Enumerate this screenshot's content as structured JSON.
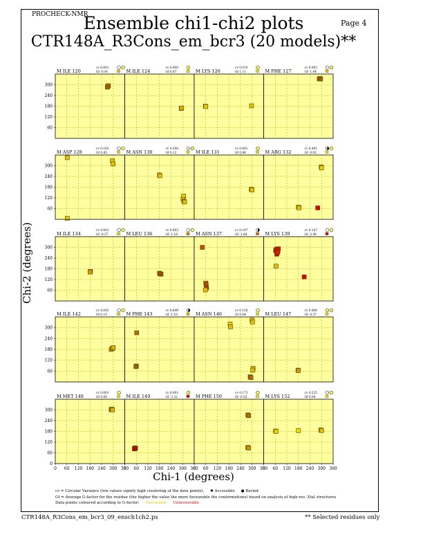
{
  "header": {
    "program": "PROCHECK-NMR",
    "page_label": "Page  4",
    "title": "Ensemble chi1-chi2 plots",
    "subtitle": "CTR148A_R3Cons_em_bcr3 (20 models)**"
  },
  "axes": {
    "xlabel": "Chi-1 (degrees)",
    "ylabel": "Chi-2 (degrees)",
    "xticks": [
      "0",
      "60",
      "120",
      "180",
      "240",
      "300",
      "360"
    ],
    "yticks": [
      "0",
      "60",
      "120",
      "180",
      "240",
      "300"
    ]
  },
  "legend": {
    "line1": "cv = Circular Variance (low values signify high clustering of the data points).",
    "accessible": "Accessible",
    "buried": "Buried",
    "line2": "Gf = Average G-factor for the residue (the higher the value the more favourable the conformations) based on analysis of high-res. Xtal structures",
    "line3": "Data points coloured according to G-factor:",
    "favourable": "Favourable",
    "unfavourable": "Unfavourable"
  },
  "footer": {
    "filename": "CTR148A_R3Cons_em_bcr3_09_ensch1ch2.ps",
    "note": "** Selected residues only"
  },
  "colors": {
    "panel_bg": "#ffffa0",
    "grid": "#b0a000",
    "favourable": "#e6c800",
    "unfavourable": "#e00000"
  },
  "chart_data": {
    "type": "scatter",
    "xlim": [
      0,
      360
    ],
    "ylim": [
      0,
      360
    ],
    "grid": true,
    "panels": [
      {
        "residue": "M ILE 120",
        "cv": "cv 0.001",
        "gf": "Gf -0.91",
        "acc": "accessible",
        "gfcolor": "#f0c000",
        "points": [
          [
            272,
            290,
            "#b07000"
          ],
          [
            275,
            295,
            "#c08000"
          ],
          [
            270,
            287,
            "#a06000"
          ]
        ]
      },
      {
        "residue": "M ILE 124",
        "cv": "cv 0.000",
        "gf": "Gf 0.87",
        "acc": "buried",
        "gfcolor": "#f0e000",
        "points": [
          [
            293,
            168,
            "#e0c000"
          ],
          [
            295,
            170,
            "#d8b000"
          ]
        ]
      },
      {
        "residue": "M LYS 126",
        "cv": "cv 0.010",
        "gf": "Gf 1.11",
        "acc": "buried",
        "gfcolor": "#f0e000",
        "points": [
          [
            58,
            180,
            "#e0c000"
          ],
          [
            60,
            178,
            "#e8d000"
          ],
          [
            297,
            182,
            "#e0c000"
          ]
        ]
      },
      {
        "residue": "M PHE 127",
        "cv": "cv 0.003",
        "gf": "Gf -1.04",
        "acc": "accessible",
        "gfcolor": "#f0c000",
        "points": [
          [
            288,
            333,
            "#c08000"
          ],
          [
            292,
            335,
            "#b07000"
          ],
          [
            295,
            332,
            "#a06000"
          ]
        ]
      },
      {
        "residue": "M ASP 128",
        "cv": "cv 0.163",
        "gf": "Gf 0.85",
        "acc": "accessible",
        "gfcolor": "#f0e000",
        "points": [
          [
            62,
            345,
            "#e0c000"
          ],
          [
            62,
            6,
            "#e8d000"
          ],
          [
            296,
            328,
            "#e0c000"
          ],
          [
            300,
            310,
            "#e0c000"
          ]
        ]
      },
      {
        "residue": "M ASN 130",
        "cv": "cv 0.308",
        "gf": "Gf 0.12",
        "acc": "accessible",
        "gfcolor": "#f0e000",
        "points": [
          [
            180,
            248,
            "#d8b000"
          ],
          [
            182,
            244,
            "#e0c000"
          ],
          [
            305,
            130,
            "#e8d000"
          ],
          [
            302,
            112,
            "#d8b000"
          ],
          [
            307,
            100,
            "#d0a800"
          ],
          [
            310,
            97,
            "#e0c000"
          ]
        ]
      },
      {
        "residue": "M ILE 131",
        "cv": "cv 0.001",
        "gf": "Gf 0.86",
        "acc": "buried",
        "gfcolor": "#f0e000",
        "points": [
          [
            296,
            168,
            "#d8b000"
          ],
          [
            300,
            165,
            "#e0c000"
          ]
        ]
      },
      {
        "residue": "M ARG 132",
        "cv": "cv 0.491",
        "gf": "Gf -0.02",
        "acc": "half",
        "gfcolor": "#f0e000",
        "points": [
          [
            298,
            293,
            "#e0c000"
          ],
          [
            300,
            288,
            "#e8d000"
          ],
          [
            180,
            68,
            "#d8b000"
          ],
          [
            184,
            65,
            "#e0c000"
          ],
          [
            280,
            64,
            "#e00000"
          ]
        ]
      },
      {
        "residue": "M ILE 134",
        "cv": "cv 0.001",
        "gf": "Gf -0.37",
        "acc": "accessible",
        "gfcolor": "#f0e000",
        "points": [
          [
            182,
            165,
            "#c89000"
          ],
          [
            180,
            162,
            "#d0a000"
          ]
        ]
      },
      {
        "residue": "M LEU 136",
        "cv": "cv 0.003",
        "gf": "Gf -1.19",
        "acc": "accessible",
        "gfcolor": "#e08000",
        "points": [
          [
            180,
            155,
            "#c07000"
          ],
          [
            188,
            150,
            "#b06000"
          ],
          [
            184,
            152,
            "#a05000"
          ]
        ]
      },
      {
        "residue": "M ASN 137",
        "cv": "cv 0.107",
        "gf": "Gf -1.64",
        "acc": "half",
        "gfcolor": "#e06000",
        "points": [
          [
            42,
            300,
            "#c05000"
          ],
          [
            60,
            100,
            "#c06000"
          ],
          [
            62,
            92,
            "#b05000"
          ],
          [
            64,
            74,
            "#a04000"
          ],
          [
            58,
            62,
            "#e0c000"
          ]
        ]
      },
      {
        "residue": "M LYS 139",
        "cv": "cv 0.147",
        "gf": "Gf -2.49",
        "acc": "accessible",
        "gfcolor": "#e00000",
        "points": [
          [
            62,
            282,
            "#d00000"
          ],
          [
            66,
            290,
            "#c00000"
          ],
          [
            70,
            285,
            "#e00000"
          ],
          [
            74,
            278,
            "#b00000"
          ],
          [
            76,
            292,
            "#d01000"
          ],
          [
            68,
            262,
            "#c00000"
          ],
          [
            72,
            272,
            "#e02000"
          ],
          [
            64,
            195,
            "#e0c000"
          ],
          [
            210,
            135,
            "#e00000"
          ]
        ]
      },
      {
        "residue": "M ILE 142",
        "cv": "cv 0.002",
        "gf": "Gf 0.15",
        "acc": "accessible",
        "gfcolor": "#f0e000",
        "points": [
          [
            290,
            180,
            "#d0a800"
          ],
          [
            296,
            186,
            "#c89800"
          ],
          [
            300,
            190,
            "#d8b000"
          ]
        ]
      },
      {
        "residue": "M PHE 143",
        "cv": "cv 0.649",
        "gf": "Gf -1.10",
        "acc": "half",
        "gfcolor": "#f0c000",
        "points": [
          [
            62,
            272,
            "#b07000"
          ],
          [
            60,
            88,
            "#b07000"
          ],
          [
            58,
            85,
            "#a06000"
          ]
        ]
      },
      {
        "residue": "M ASN 146",
        "cv": "cv 0.156",
        "gf": "Gf 0.04",
        "acc": "buried",
        "gfcolor": "#f0e000",
        "points": [
          [
            300,
            342,
            "#d8b000"
          ],
          [
            302,
            332,
            "#e0c000"
          ],
          [
            186,
            320,
            "#e8d000"
          ],
          [
            188,
            305,
            "#e0c000"
          ],
          [
            305,
            75,
            "#d8b000"
          ],
          [
            303,
            65,
            "#e0c000"
          ],
          [
            290,
            28,
            "#a06000"
          ],
          [
            294,
            24,
            "#b07000"
          ]
        ]
      },
      {
        "residue": "M LEU 147",
        "cv": "cv 0.000",
        "gf": "Gf -0.37",
        "acc": "buried",
        "gfcolor": "#f0e000",
        "points": [
          [
            178,
            65,
            "#c89000"
          ],
          [
            180,
            63,
            "#d0a000"
          ]
        ]
      },
      {
        "residue": "M MET 148",
        "cv": "cv 0.001",
        "gf": "Gf 0.68",
        "acc": "buried",
        "gfcolor": "#f0e000",
        "points": [
          [
            290,
            302,
            "#d0a800"
          ],
          [
            293,
            305,
            "#c89800"
          ],
          [
            296,
            300,
            "#d8b000"
          ]
        ]
      },
      {
        "residue": "M ILE 149",
        "cv": "cv 0.001",
        "gf": "Gf -2.22",
        "acc": "buried",
        "gfcolor": "#e00000",
        "points": [
          [
            52,
            88,
            "#b00000"
          ],
          [
            54,
            84,
            "#c00000"
          ],
          [
            50,
            82,
            "#a00000"
          ],
          [
            56,
            86,
            "#b01000"
          ]
        ]
      },
      {
        "residue": "M PHE 150",
        "cv": "cv 0.173",
        "gf": "Gf -0.55",
        "acc": "buried",
        "gfcolor": "#f0e000",
        "points": [
          [
            278,
            272,
            "#c08000"
          ],
          [
            282,
            268,
            "#b07000"
          ],
          [
            278,
            90,
            "#c08000"
          ],
          [
            282,
            87,
            "#d09000"
          ]
        ]
      },
      {
        "residue": "M LYS 152",
        "cv": "cv 0.225",
        "gf": "Gf 0.84",
        "acc": "accessible",
        "gfcolor": "#f0e000",
        "points": [
          [
            62,
            182,
            "#e0c000"
          ],
          [
            64,
            180,
            "#e8d000"
          ],
          [
            180,
            185,
            "#e8e000"
          ],
          [
            296,
            188,
            "#d8b000"
          ],
          [
            300,
            185,
            "#e0c000"
          ]
        ]
      }
    ]
  }
}
